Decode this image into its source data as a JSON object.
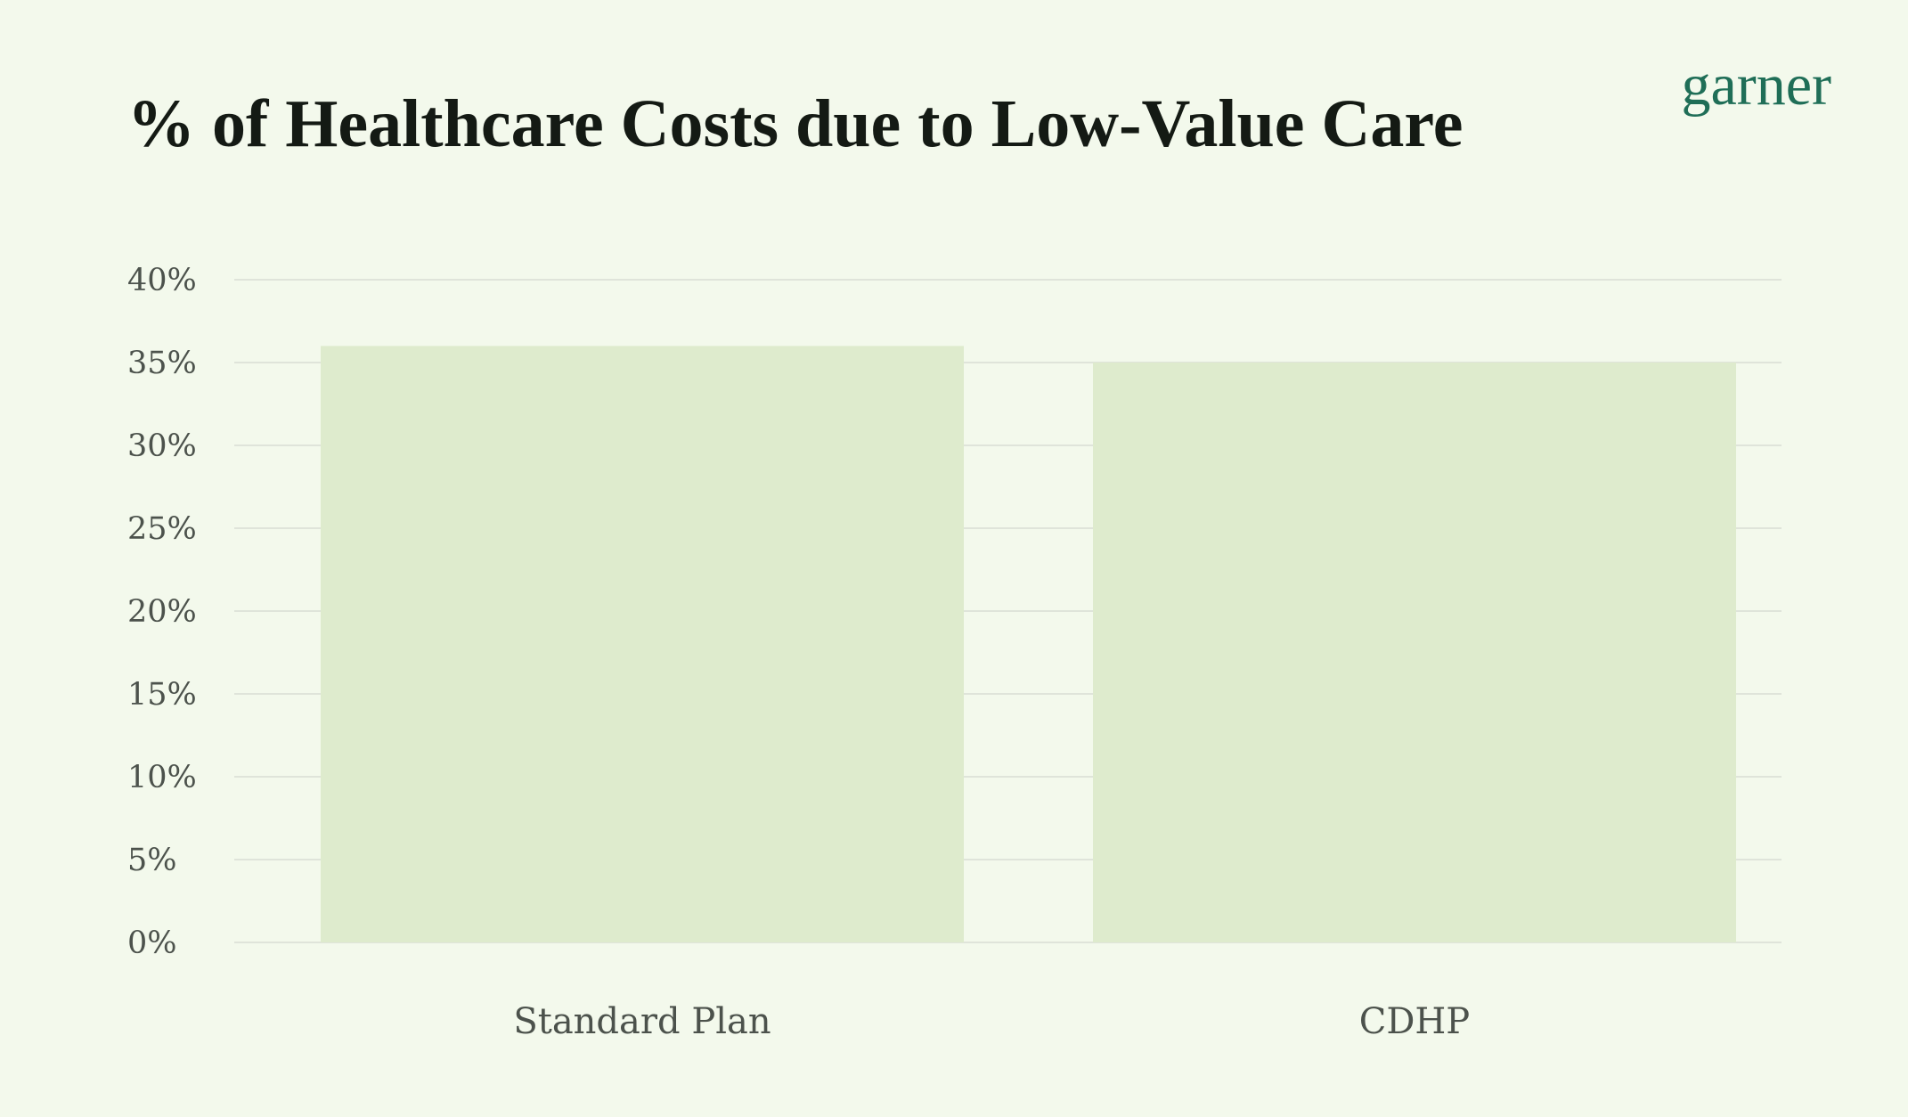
{
  "header": {
    "logo_text": "garner"
  },
  "chart_data": {
    "type": "bar",
    "title": "% of Healthcare Costs due to Low-Value Care",
    "xlabel": "",
    "ylabel": "",
    "categories": [
      "Standard Plan",
      "CDHP"
    ],
    "values": [
      36,
      35
    ],
    "ylim": [
      0,
      40
    ],
    "yticks": [
      0,
      5,
      10,
      15,
      20,
      25,
      30,
      35,
      40
    ],
    "ytick_labels": [
      "0%",
      "5%",
      "10%",
      "15%",
      "20%",
      "25%",
      "30%",
      "35%",
      "40%"
    ],
    "grid": true,
    "legend": "none",
    "colors": {
      "bar": "#deebcd",
      "grid": "#dfe4da",
      "text": "#4c524c",
      "background": "#f3f9ec"
    }
  }
}
